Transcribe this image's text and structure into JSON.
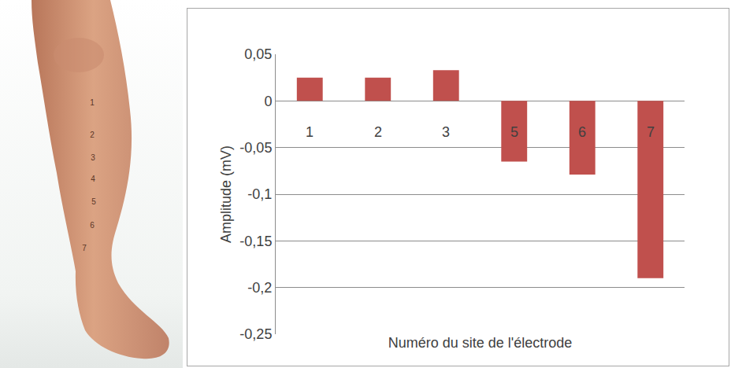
{
  "chart_data": {
    "type": "bar",
    "categories": [
      "1",
      "2",
      "3",
      "5",
      "6",
      "7"
    ],
    "values": [
      0.025,
      0.025,
      0.033,
      -0.065,
      -0.079,
      -0.19
    ],
    "color": "#c0504d",
    "xlabel": "Numéro du site de l'électrode",
    "ylabel": "Amplitude (mV)",
    "ylim": [
      -0.25,
      0.05
    ],
    "yticks": [
      {
        "value": 0.05,
        "label": "0,05"
      },
      0,
      {
        "value": -0.05,
        "label": "-0,05"
      },
      {
        "value": -0.1,
        "label": "-0,1"
      },
      {
        "value": -0.15,
        "label": "-0,15"
      },
      {
        "value": -0.2,
        "label": "-0,2"
      },
      {
        "value": -0.25,
        "label": "-0,25"
      }
    ],
    "grid": true,
    "annotations": [
      "1",
      "2",
      "3",
      "4",
      "5",
      "6",
      "7"
    ]
  }
}
